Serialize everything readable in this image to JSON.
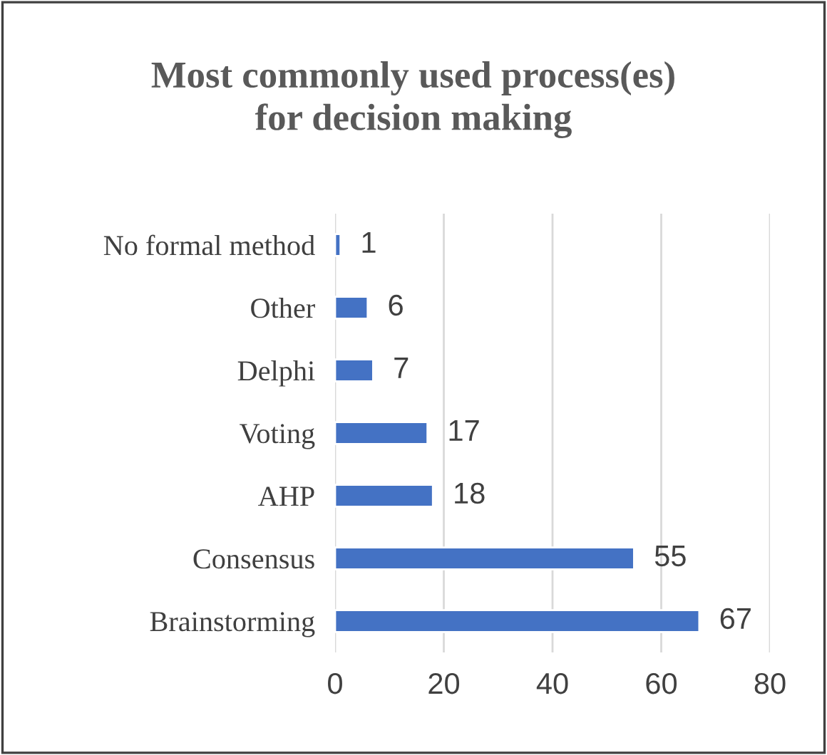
{
  "chart_data": {
    "type": "bar",
    "orientation": "horizontal",
    "title": "Most commonly used process(es)\nfor decision making",
    "categories": [
      "No formal method",
      "Other",
      "Delphi",
      "Voting",
      "AHP",
      "Consensus",
      "Brainstorming"
    ],
    "values": [
      1,
      6,
      7,
      17,
      18,
      55,
      67
    ],
    "color": "#4472c4",
    "xlim": [
      0,
      80
    ],
    "xticks": [
      0,
      20,
      40,
      60,
      80
    ],
    "grid": "x",
    "data_labels": true
  }
}
